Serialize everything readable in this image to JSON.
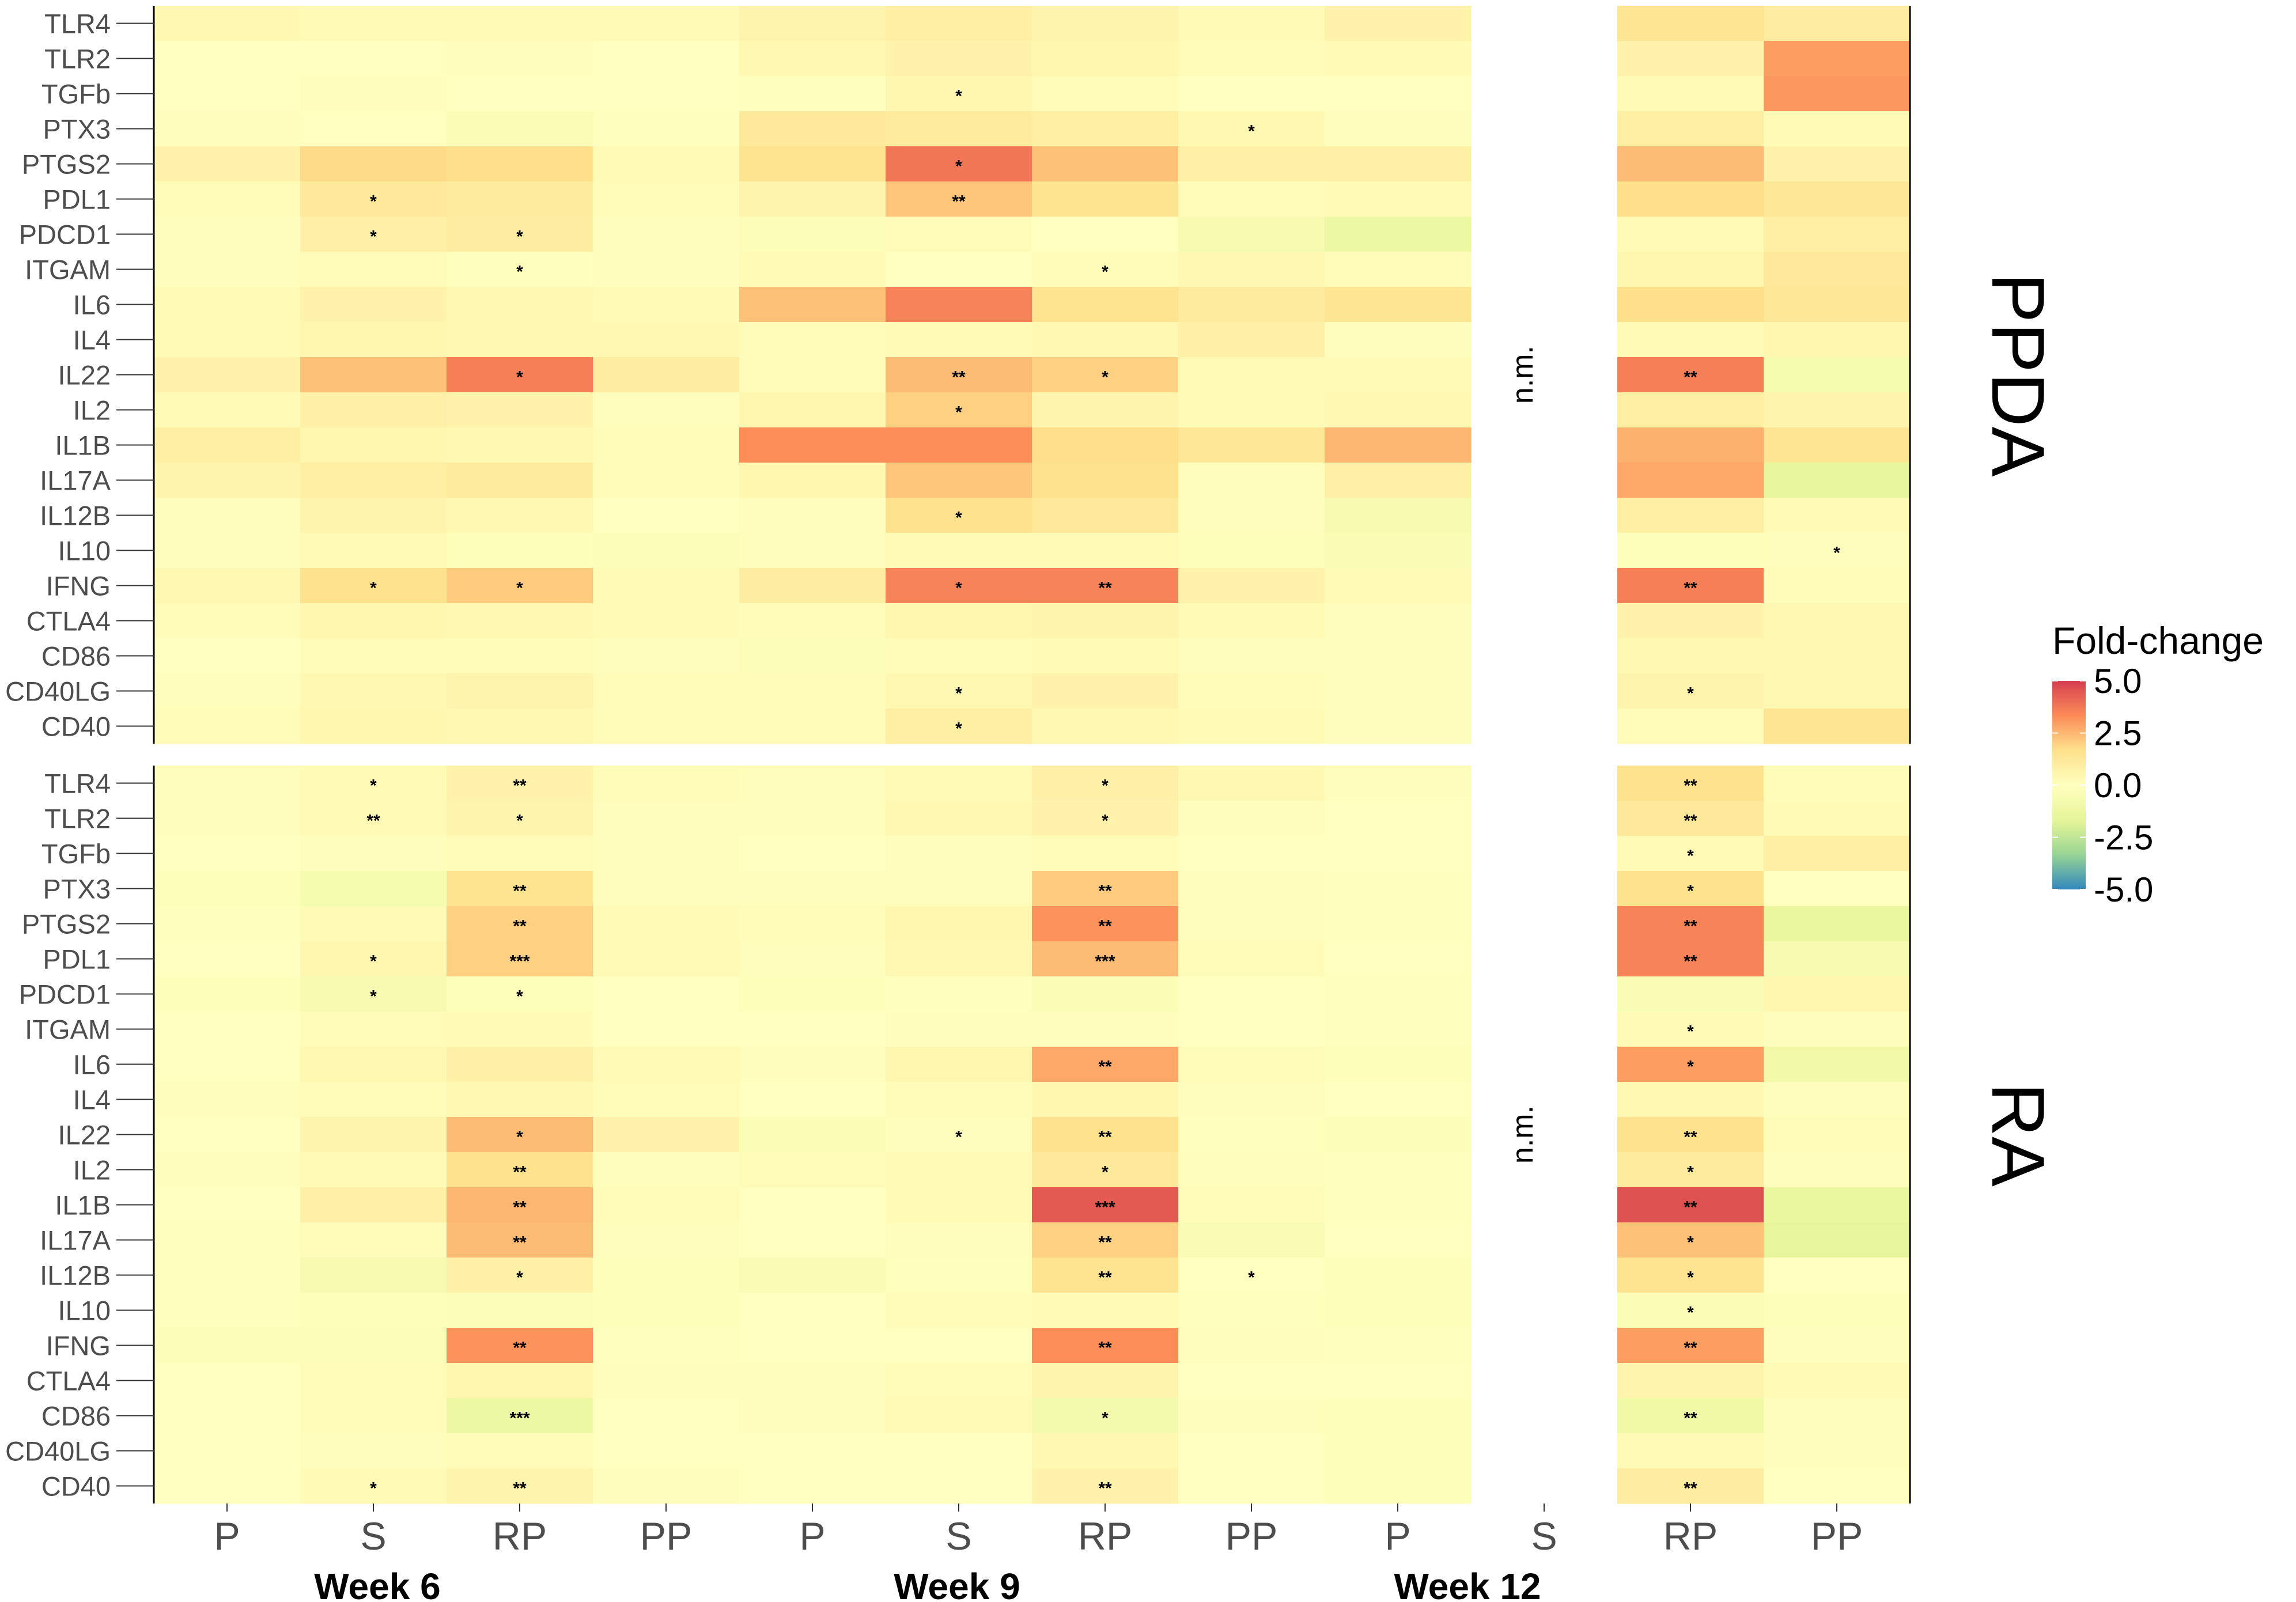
{
  "chart_data": {
    "type": "heatmap",
    "genes": [
      "TLR4",
      "TLR2",
      "TGFb",
      "PTX3",
      "PTGS2",
      "PDL1",
      "PDCD1",
      "ITGAM",
      "IL6",
      "IL4",
      "IL22",
      "IL2",
      "IL1B",
      "IL17A",
      "IL12B",
      "IL10",
      "IFNG",
      "CTLA4",
      "CD86",
      "CD40LG",
      "CD40"
    ],
    "weeks": [
      "Week 6",
      "Week 9",
      "Week 12"
    ],
    "groups": [
      "P",
      "S",
      "RP",
      "PP"
    ],
    "panels": [
      "PPDA",
      "RA"
    ],
    "not_measured_label": "n.m.",
    "legend": {
      "title": "Fold-change",
      "ticks": [
        5.0,
        2.5,
        0.0,
        -2.5,
        -5.0
      ],
      "tick_labels": [
        "5.0",
        "2.5",
        "0.0",
        "-2.5",
        "-5.0"
      ],
      "range": [
        -5,
        5
      ]
    },
    "colorscale": [
      {
        "v": -5,
        "color": "#3288bd"
      },
      {
        "v": -3.3,
        "color": "#99d594"
      },
      {
        "v": -1.7,
        "color": "#e6f598"
      },
      {
        "v": 0,
        "color": "#ffffbf"
      },
      {
        "v": 1.7,
        "color": "#fee08b"
      },
      {
        "v": 3.3,
        "color": "#fc8d59"
      },
      {
        "v": 5,
        "color": "#d53e4f"
      }
    ],
    "values": {
      "PPDA": {
        "Week 6": {
          "P": [
            0.4,
            0.0,
            0.0,
            0.1,
            0.7,
            0.2,
            0.1,
            0.1,
            0.3,
            0.3,
            0.7,
            0.3,
            0.9,
            0.6,
            0.1,
            0.1,
            0.4,
            0.2,
            0.0,
            0.1,
            0.2
          ],
          "S": [
            0.3,
            0.0,
            0.1,
            0.0,
            1.8,
            1.2,
            0.8,
            0.2,
            0.7,
            0.5,
            2.3,
            0.8,
            0.5,
            0.9,
            0.6,
            0.3,
            1.6,
            0.5,
            0.2,
            0.4,
            0.5
          ],
          "RP": [
            0.3,
            0.1,
            0.0,
            -0.4,
            1.7,
            1.1,
            1.0,
            -0.1,
            0.4,
            0.4,
            3.6,
            0.7,
            0.4,
            1.1,
            0.4,
            -0.2,
            2.1,
            0.4,
            0.2,
            0.6,
            0.4
          ],
          "PP": [
            0.3,
            0.0,
            0.0,
            -0.1,
            0.3,
            0.2,
            0.1,
            0.1,
            0.3,
            0.4,
            1.0,
            0.1,
            0.2,
            0.2,
            0.0,
            -0.3,
            0.3,
            0.3,
            0.1,
            0.2,
            0.2
          ]
        },
        "Week 9": {
          "P": [
            0.6,
            0.4,
            -0.1,
            1.2,
            1.5,
            0.6,
            -0.3,
            0.3,
            2.3,
            0.2,
            0.2,
            0.5,
            3.3,
            0.5,
            0.1,
            0.1,
            1.0,
            0.2,
            -0.3,
            0.2,
            0.2
          ],
          "S": [
            0.9,
            0.7,
            0.5,
            1.1,
            3.8,
            2.2,
            0.2,
            0.0,
            3.5,
            0.3,
            2.4,
            2.0,
            3.3,
            2.2,
            1.6,
            0.3,
            3.5,
            0.5,
            0.2,
            0.4,
            0.9
          ],
          "RP": [
            0.6,
            0.5,
            0.2,
            0.9,
            2.3,
            1.5,
            0.0,
            0.2,
            1.5,
            0.4,
            2.0,
            0.6,
            1.7,
            1.6,
            1.2,
            0.3,
            3.5,
            0.6,
            0.3,
            0.7,
            0.4
          ],
          "PP": [
            0.3,
            0.2,
            0.0,
            0.4,
            0.8,
            0.2,
            -0.6,
            0.4,
            1.1,
            0.8,
            0.3,
            0.3,
            1.3,
            0.1,
            0.1,
            -0.2,
            0.7,
            0.3,
            0.1,
            0.2,
            0.3
          ]
        },
        "Week 12": {
          "P": [
            0.7,
            0.3,
            0.0,
            0.1,
            0.8,
            0.3,
            -1.2,
            0.2,
            1.4,
            0.1,
            0.3,
            0.4,
            2.5,
            0.8,
            -0.6,
            -0.5,
            0.3,
            0.1,
            0.1,
            0.1,
            0.1
          ],
          "RP": [
            1.4,
            0.7,
            0.3,
            0.9,
            2.4,
            1.7,
            0.3,
            0.5,
            1.7,
            0.3,
            3.6,
            0.9,
            2.6,
            2.8,
            0.9,
            -0.2,
            3.6,
            0.7,
            0.4,
            0.6,
            0.2
          ],
          "PP": [
            1.0,
            3.0,
            3.1,
            0.3,
            0.7,
            1.3,
            0.9,
            1.2,
            1.3,
            0.5,
            -0.7,
            0.6,
            1.4,
            -1.6,
            0.3,
            0.1,
            0.2,
            0.4,
            0.4,
            0.4,
            1.4
          ]
        }
      },
      "RA": {
        "Week 6": {
          "P": [
            0.1,
            0.1,
            0.0,
            -0.2,
            -0.1,
            0.0,
            -0.2,
            0.0,
            0.0,
            0.1,
            0.0,
            0.1,
            0.0,
            -0.1,
            -0.1,
            -0.1,
            -0.3,
            0.0,
            0.0,
            0.0,
            0.0
          ],
          "S": [
            0.3,
            0.3,
            0.1,
            -0.7,
            0.3,
            0.5,
            -0.6,
            0.2,
            0.4,
            0.2,
            0.6,
            0.3,
            0.8,
            0.2,
            -0.6,
            -0.2,
            -0.3,
            0.2,
            0.2,
            0.1,
            0.3
          ],
          "RP": [
            0.7,
            0.6,
            0.2,
            1.5,
            2.0,
            2.0,
            -0.2,
            0.3,
            0.8,
            0.4,
            2.4,
            1.6,
            2.5,
            2.4,
            0.8,
            -0.3,
            3.2,
            0.5,
            -1.2,
            0.2,
            0.6
          ],
          "PP": [
            0.2,
            0.1,
            0.1,
            0.1,
            0.3,
            0.3,
            0.0,
            0.0,
            0.3,
            0.2,
            0.7,
            0.1,
            0.2,
            0.1,
            -0.2,
            -0.2,
            -0.1,
            0.1,
            0.0,
            0.0,
            0.1
          ]
        },
        "Week 9": {
          "P": [
            0.1,
            0.1,
            0.0,
            0.1,
            0.2,
            0.1,
            -0.2,
            0.0,
            0.1,
            0.0,
            -0.4,
            0.2,
            0.0,
            0.0,
            -0.5,
            0.0,
            0.0,
            0.1,
            0.1,
            0.0,
            0.0
          ],
          "S": [
            0.3,
            0.4,
            0.1,
            0.1,
            0.5,
            0.4,
            -0.1,
            0.1,
            0.5,
            0.2,
            0.1,
            0.3,
            0.3,
            0.1,
            -0.1,
            0.2,
            0.0,
            0.2,
            0.3,
            0.0,
            0.0
          ],
          "RP": [
            0.8,
            0.7,
            0.2,
            2.1,
            3.2,
            2.4,
            -0.4,
            0.1,
            2.8,
            0.5,
            1.6,
            1.2,
            4.4,
            2.0,
            1.5,
            0.3,
            3.3,
            0.6,
            -0.8,
            0.4,
            0.7
          ],
          "PP": [
            0.4,
            0.1,
            0.0,
            0.1,
            0.1,
            0.2,
            0.0,
            0.0,
            0.2,
            0.1,
            -0.1,
            0.1,
            0.2,
            -0.5,
            0.0,
            -0.1,
            0.1,
            0.0,
            0.1,
            0.0,
            0.0
          ]
        },
        "Week 12": {
          "P": [
            0.1,
            0.0,
            0.0,
            -0.1,
            -0.1,
            0.0,
            -0.1,
            -0.1,
            -0.2,
            0.0,
            -0.3,
            -0.1,
            -0.1,
            0.0,
            -0.2,
            -0.2,
            -0.1,
            0.0,
            -0.2,
            -0.2,
            -0.2
          ],
          "RP": [
            1.6,
            1.2,
            0.3,
            1.6,
            3.5,
            3.5,
            -0.5,
            0.3,
            3.0,
            0.4,
            1.6,
            1.1,
            4.6,
            2.3,
            1.5,
            -0.4,
            3.0,
            0.6,
            -1.1,
            0.3,
            1.0
          ],
          "PP": [
            0.2,
            0.3,
            0.9,
            0.0,
            -1.4,
            -0.6,
            0.5,
            0.1,
            -0.9,
            0.1,
            0.2,
            0.1,
            -1.4,
            -1.6,
            0.0,
            -0.2,
            0.1,
            0.3,
            0.1,
            0.1,
            0.0
          ]
        }
      }
    },
    "significance": {
      "PPDA": {
        "Week 6": {
          "S": {
            "PDL1": "*",
            "PDCD1": "*",
            "IFNG": "*"
          },
          "RP": {
            "PDCD1": "*",
            "ITGAM": "*",
            "IL22": "*",
            "IFNG": "*"
          }
        },
        "Week 9": {
          "S": {
            "TGFb": "*",
            "PTGS2": "*",
            "PDL1": "**",
            "IL22": "**",
            "IL2": "*",
            "IL12B": "*",
            "IFNG": "*",
            "CD40LG": "*",
            "CD40": "*"
          },
          "RP": {
            "ITGAM": "*",
            "IL22": "*",
            "IFNG": "**"
          },
          "PP": {
            "PTX3": "*"
          }
        },
        "Week 12": {
          "RP": {
            "IL22": "**",
            "IFNG": "**",
            "CD40LG": "*"
          },
          "PP": {
            "IL10": "*"
          }
        }
      },
      "RA": {
        "Week 6": {
          "S": {
            "TLR4": "*",
            "TLR2": "**",
            "PDL1": "*",
            "PDCD1": "*",
            "CD40": "*"
          },
          "RP": {
            "TLR4": "**",
            "TLR2": "*",
            "PTX3": "**",
            "PTGS2": "**",
            "PDL1": "***",
            "PDCD1": "*",
            "IL22": "*",
            "IL2": "**",
            "IL1B": "**",
            "IL17A": "**",
            "IL12B": "*",
            "IFNG": "**",
            "CD86": "***",
            "CD40": "**"
          }
        },
        "Week 9": {
          "S": {
            "IL22": "*"
          },
          "RP": {
            "TLR4": "*",
            "TLR2": "*",
            "PTX3": "**",
            "PTGS2": "**",
            "PDL1": "***",
            "IL6": "**",
            "IL22": "**",
            "IL2": "*",
            "IL1B": "***",
            "IL17A": "**",
            "IL12B": "**",
            "IFNG": "**",
            "CD86": "*",
            "CD40": "**"
          },
          "PP": {
            "IL12B": "*"
          }
        },
        "Week 12": {
          "RP": {
            "TLR4": "**",
            "TLR2": "**",
            "TGFb": "*",
            "PTX3": "*",
            "PTGS2": "**",
            "PDL1": "**",
            "ITGAM": "*",
            "IL6": "*",
            "IL22": "**",
            "IL2": "*",
            "IL1B": "**",
            "IL17A": "*",
            "IL12B": "*",
            "IL10": "*",
            "IFNG": "**",
            "CD86": "**",
            "CD40": "**"
          }
        }
      }
    }
  }
}
